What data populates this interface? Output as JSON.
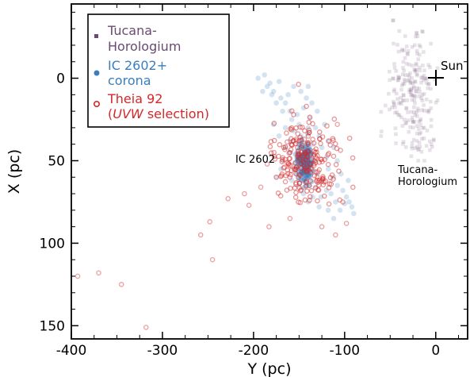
{
  "chart_data": {
    "type": "scatter",
    "title": "",
    "xlabel": "Y (pc)",
    "ylabel": "X (pc)",
    "xlim": [
      -400,
      35
    ],
    "ylim": [
      158,
      -45
    ],
    "y_inverted": true,
    "x_ticks": [
      "-400",
      "-300",
      "-200",
      "-100",
      "0"
    ],
    "x_tick_values": [
      -400,
      -300,
      -200,
      -100,
      0
    ],
    "y_ticks": [
      "0",
      "50",
      "100",
      "150"
    ],
    "y_tick_values": [
      0,
      50,
      100,
      150
    ],
    "grid": false,
    "legend_placement": "top-left",
    "legend": [
      {
        "line1": "Tucana-",
        "line2": "Horologium",
        "color": "#6b4a72",
        "marker": "square"
      },
      {
        "line1": "IC 2602+",
        "line2": "corona",
        "color": "#3a7ebd",
        "marker": "filled-circle"
      },
      {
        "line1": "Theia 92",
        "line2_prefix": "(",
        "line2_italic": "UVW",
        "line2_suffix": " selection)",
        "color": "#d62728",
        "marker": "open-circle"
      }
    ],
    "annotations": {
      "sun": {
        "label": "Sun",
        "x": 0,
        "y": 0
      },
      "ic2602": {
        "label": "IC 2602",
        "x": -145,
        "y": 50
      },
      "tuchor_line1": "Tucana-",
      "tuchor_line2": "Horologium"
    },
    "series": [
      {
        "name": "Tucana-Horologium",
        "marker": "square",
        "color": "#6b4a72",
        "cluster": {
          "cx": -25,
          "cy": 10,
          "sx": 14,
          "sy": 22,
          "n": 230,
          "x_range": [
            -60,
            2
          ],
          "y_range": [
            -35,
            50
          ]
        }
      },
      {
        "name": "IC 2602+corona",
        "marker": "filled-circle",
        "color": "#3a7ebd",
        "core": {
          "cx": -144,
          "cy": 51,
          "sx": 4,
          "sy": 6,
          "n": 170
        },
        "corona_points": [
          [
            -195,
            0
          ],
          [
            -188,
            -2
          ],
          [
            -182,
            3
          ],
          [
            -178,
            8
          ],
          [
            -172,
            2
          ],
          [
            -170,
            12
          ],
          [
            -165,
            15
          ],
          [
            -160,
            20
          ],
          [
            -168,
            20
          ],
          [
            -175,
            15
          ],
          [
            -158,
            25
          ],
          [
            -150,
            28
          ],
          [
            -155,
            32
          ],
          [
            -148,
            35
          ],
          [
            -160,
            38
          ],
          [
            -165,
            30
          ],
          [
            -152,
            22
          ],
          [
            -145,
            18
          ],
          [
            -138,
            24
          ],
          [
            -132,
            30
          ],
          [
            -128,
            35
          ],
          [
            -135,
            40
          ],
          [
            -140,
            30
          ],
          [
            -125,
            42
          ],
          [
            -120,
            48
          ],
          [
            -118,
            55
          ],
          [
            -112,
            60
          ],
          [
            -108,
            65
          ],
          [
            -102,
            68
          ],
          [
            -98,
            72
          ],
          [
            -95,
            75
          ],
          [
            -92,
            78
          ],
          [
            -90,
            82
          ],
          [
            -110,
            75
          ],
          [
            -115,
            70
          ],
          [
            -105,
            80
          ],
          [
            -100,
            76
          ],
          [
            -120,
            68
          ],
          [
            -125,
            62
          ],
          [
            -130,
            58
          ],
          [
            -160,
            45
          ],
          [
            -168,
            50
          ],
          [
            -170,
            55
          ],
          [
            -175,
            60
          ],
          [
            -158,
            62
          ],
          [
            -150,
            65
          ],
          [
            -145,
            70
          ],
          [
            -140,
            75
          ],
          [
            -135,
            72
          ],
          [
            -128,
            78
          ],
          [
            -118,
            80
          ],
          [
            -112,
            85
          ],
          [
            -180,
            10
          ],
          [
            -185,
            5
          ],
          [
            -190,
            8
          ],
          [
            -142,
            12
          ],
          [
            -136,
            15
          ],
          [
            -130,
            20
          ],
          [
            -122,
            28
          ],
          [
            -118,
            38
          ],
          [
            -112,
            42
          ],
          [
            -108,
            50
          ],
          [
            -165,
            42
          ],
          [
            -172,
            35
          ],
          [
            -178,
            28
          ],
          [
            -155,
            55
          ],
          [
            -138,
            60
          ],
          [
            -132,
            66
          ],
          [
            -126,
            72
          ],
          [
            -96,
            62
          ],
          [
            -104,
            58
          ],
          [
            -162,
            10
          ],
          [
            -156,
            5
          ],
          [
            -148,
            8
          ],
          [
            -140,
            5
          ]
        ]
      },
      {
        "name": "Theia 92 (UVW selection)",
        "marker": "open-circle",
        "color": "#d62728",
        "core": {
          "cx": -142,
          "cy": 50,
          "sx": 17,
          "sy": 12,
          "n": 230
        },
        "outliers": [
          [
            -393,
            120
          ],
          [
            -370,
            118
          ],
          [
            -345,
            125
          ],
          [
            -318,
            151
          ],
          [
            -258,
            95
          ],
          [
            -245,
            110
          ],
          [
            -248,
            87
          ],
          [
            -228,
            73
          ],
          [
            -210,
            70
          ],
          [
            -205,
            77
          ],
          [
            -192,
            66
          ],
          [
            -183,
            90
          ],
          [
            -175,
            60
          ],
          [
            -185,
            52
          ],
          [
            -108,
            28
          ],
          [
            -102,
            75
          ],
          [
            -98,
            88
          ],
          [
            -125,
            90
          ],
          [
            -110,
            95
          ],
          [
            -160,
            85
          ]
        ]
      }
    ]
  }
}
